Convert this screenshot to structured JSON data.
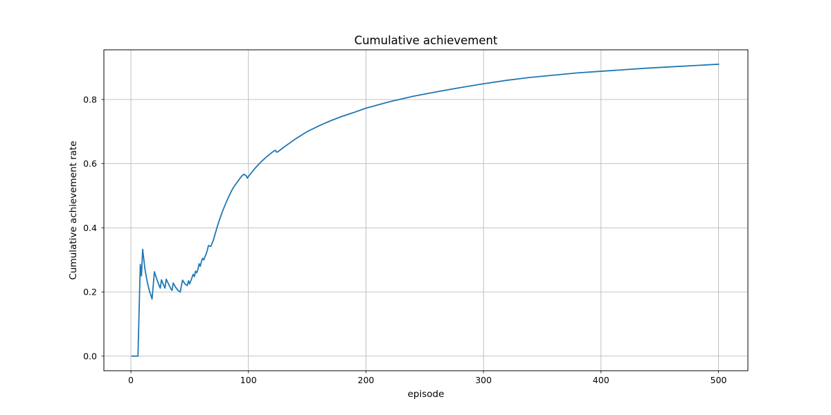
{
  "chart_data": {
    "type": "line",
    "title": "Cumulative achievement",
    "xlabel": "episode",
    "ylabel": "Cumulative achievement rate",
    "xlim": [
      -23,
      525
    ],
    "ylim": [
      -0.0455,
      0.955
    ],
    "xticks": [
      0,
      100,
      200,
      300,
      400,
      500
    ],
    "yticks": [
      0.0,
      0.2,
      0.4,
      0.6,
      0.8
    ],
    "xtick_labels": [
      "0",
      "100",
      "200",
      "300",
      "400",
      "500"
    ],
    "ytick_labels": [
      "0.0",
      "0.2",
      "0.4",
      "0.6",
      "0.8"
    ],
    "grid": true,
    "legend": "none",
    "series": [
      {
        "color": "#1f77b4",
        "x": [
          1,
          2,
          3,
          4,
          5,
          6,
          7,
          8,
          9,
          10,
          12,
          14,
          16,
          17,
          18,
          20,
          22,
          24,
          25,
          26,
          28,
          29,
          30,
          32,
          34,
          35,
          36,
          38,
          40,
          42,
          43,
          44,
          46,
          48,
          49,
          50,
          51,
          52,
          53,
          54,
          55,
          56,
          57,
          58,
          59,
          60,
          61,
          62,
          63,
          64,
          65,
          66,
          68,
          70,
          72,
          74,
          76,
          78,
          80,
          82,
          84,
          86,
          88,
          90,
          92,
          94,
          96,
          98,
          99,
          100,
          105,
          110,
          115,
          120,
          123,
          124,
          125,
          130,
          140,
          150,
          160,
          170,
          180,
          190,
          200,
          220,
          240,
          260,
          280,
          300,
          320,
          340,
          360,
          380,
          400,
          420,
          440,
          460,
          480,
          500
        ],
        "y": [
          0.0,
          0.0,
          0.0,
          0.0,
          0.0,
          0.0,
          0.143,
          0.286,
          0.25,
          0.333,
          0.27,
          0.23,
          0.2,
          0.19,
          0.178,
          0.263,
          0.24,
          0.22,
          0.212,
          0.238,
          0.22,
          0.212,
          0.24,
          0.225,
          0.21,
          0.205,
          0.228,
          0.215,
          0.205,
          0.2,
          0.22,
          0.237,
          0.225,
          0.22,
          0.235,
          0.225,
          0.235,
          0.245,
          0.255,
          0.248,
          0.265,
          0.26,
          0.27,
          0.288,
          0.28,
          0.295,
          0.305,
          0.3,
          0.31,
          0.318,
          0.33,
          0.345,
          0.342,
          0.36,
          0.385,
          0.41,
          0.432,
          0.452,
          0.47,
          0.487,
          0.503,
          0.518,
          0.53,
          0.54,
          0.55,
          0.56,
          0.567,
          0.563,
          0.555,
          0.56,
          0.583,
          0.603,
          0.62,
          0.635,
          0.642,
          0.636,
          0.637,
          0.651,
          0.677,
          0.7,
          0.718,
          0.734,
          0.748,
          0.76,
          0.773,
          0.793,
          0.81,
          0.824,
          0.837,
          0.849,
          0.86,
          0.869,
          0.876,
          0.883,
          0.888,
          0.893,
          0.898,
          0.902,
          0.906,
          0.91
        ]
      }
    ]
  }
}
